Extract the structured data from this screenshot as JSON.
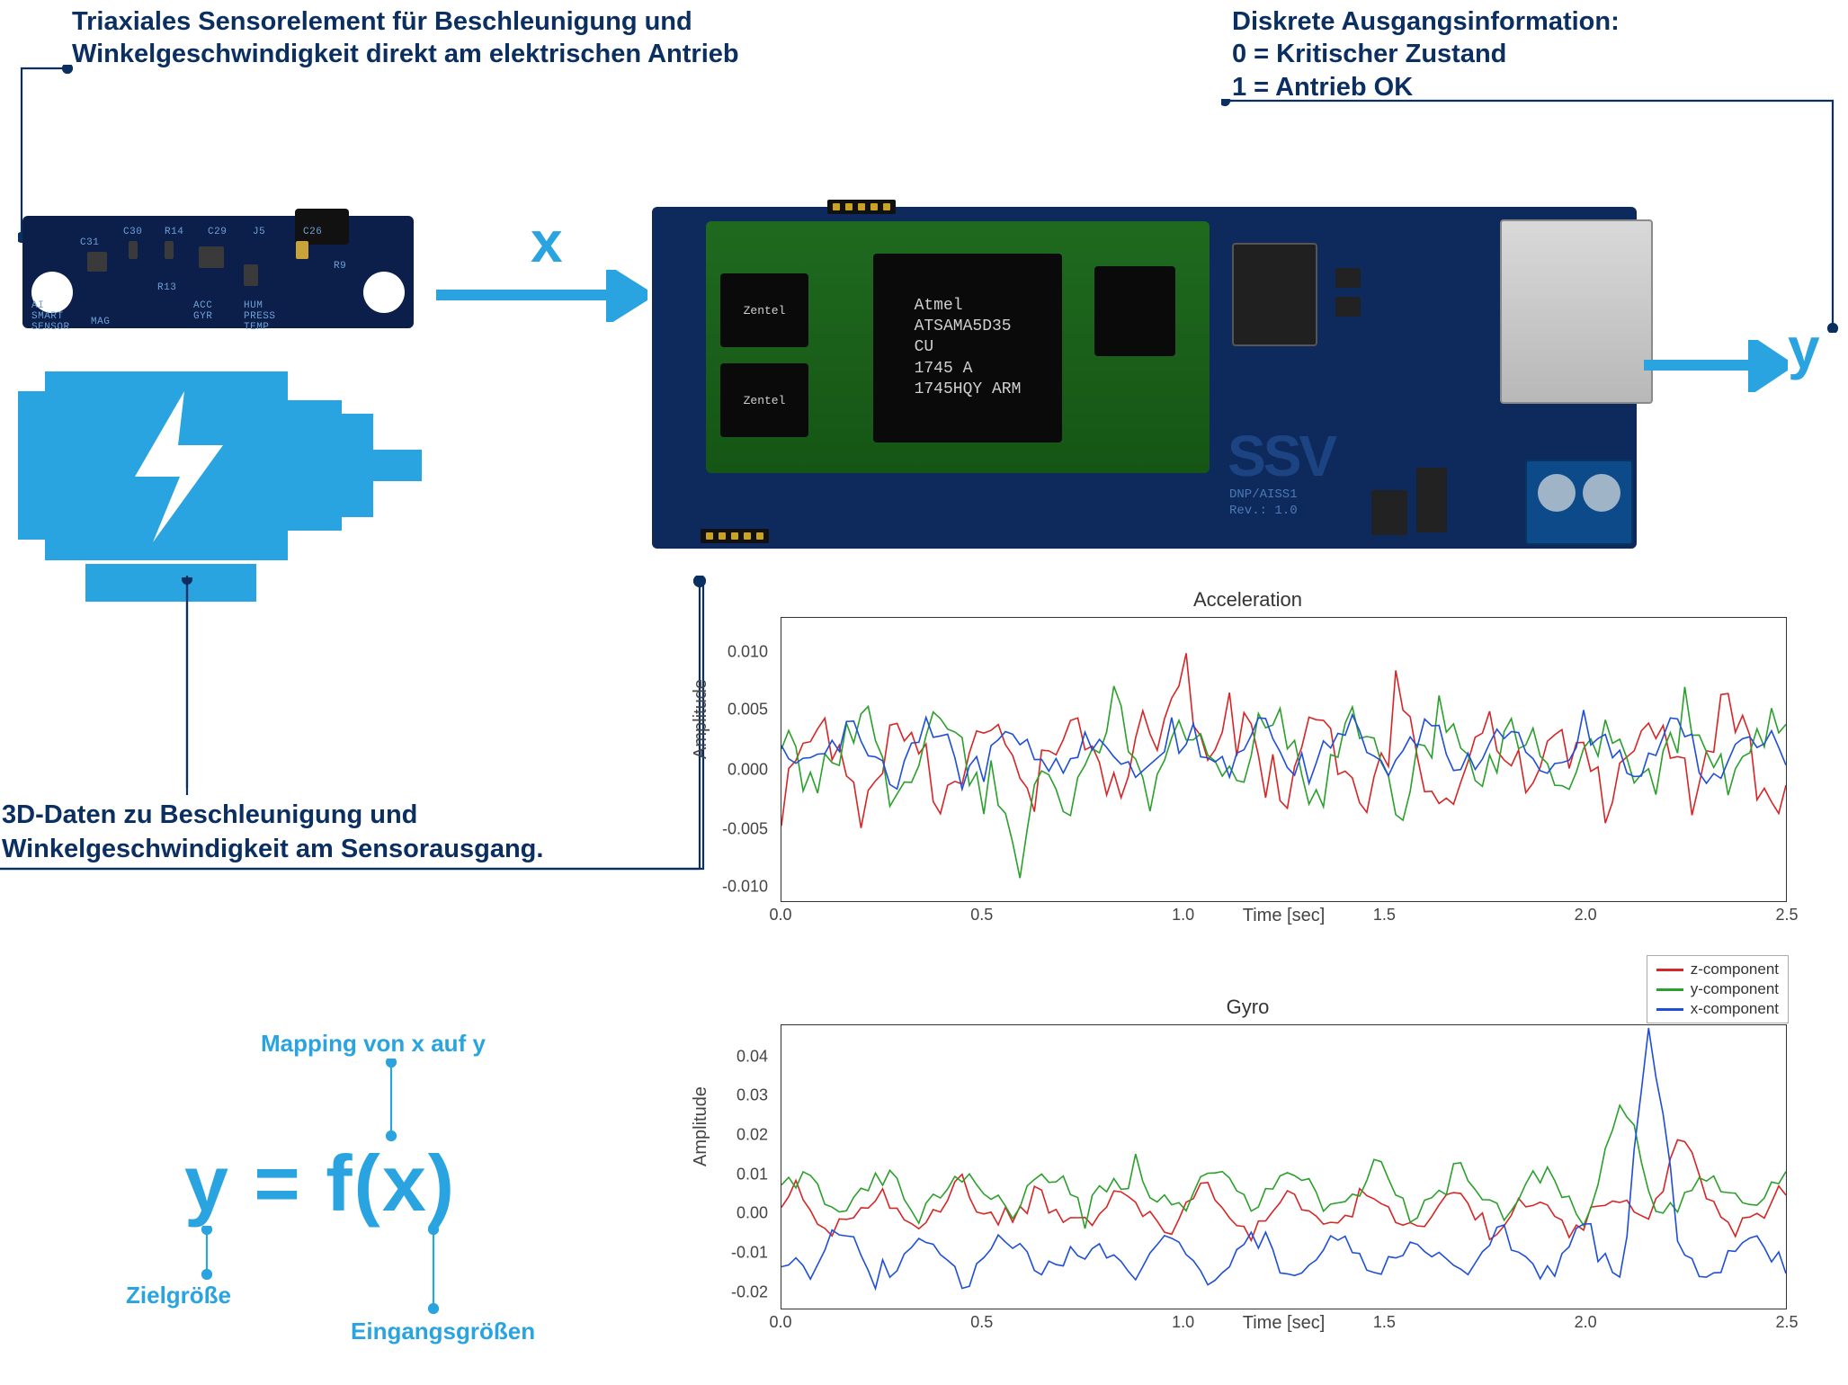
{
  "labels": {
    "sensor": "Triaxiales Sensorelement für Beschleunigung und\nWinkelgeschwindigkeit direkt am elektrischen Antrieb",
    "output": "Diskrete Ausgangsinformation:\n0 = Kritischer Zustand\n1 = Antrieb OK",
    "data3d": "3D-Daten zu Beschleunigung und\nWinkelgeschwindigkeit am Sensorausgang.",
    "x": "x",
    "y": "y"
  },
  "colors": {
    "dark_blue": "#0a2f60",
    "light_blue": "#2aa4e0",
    "pcb_blue": "#0e2a5c",
    "som_green_top": "#1f6a1f",
    "som_green_bot": "#155515",
    "series_z": "#d62728",
    "series_y": "#2ca02c",
    "series_x": "#1f4fd6",
    "axis": "#333333"
  },
  "som": {
    "chip_main": "Atmel\nATSAMA5D35\nCU\n1745  A\n1745HQY   ARM",
    "chip_ram": "Zentel"
  },
  "equation": {
    "formula": "y = f(x)",
    "annot_map": "Mapping von x auf y",
    "annot_y": "Zielgröße",
    "annot_x": "Eingangsgrößen"
  },
  "legend": {
    "z": "z-component",
    "y": "y-component",
    "x": "x-component"
  },
  "charts": {
    "acc": {
      "type": "line",
      "title": "Acceleration",
      "xlabel": "Time [sec]",
      "ylabel": "Amplitude",
      "xlim": [
        0.0,
        2.5
      ],
      "ylim": [
        -0.012,
        0.012
      ],
      "xticks": [
        0.0,
        0.5,
        1.0,
        1.5,
        2.0,
        2.5
      ],
      "yticks": [
        -0.01,
        -0.005,
        0.0,
        0.005,
        0.01
      ],
      "line_width": 1.6,
      "background_color": "#ffffff",
      "border_color": "#333333"
    },
    "gyro": {
      "type": "line",
      "title": "Gyro",
      "xlabel": "Time [sec]",
      "ylabel": "Amplitude",
      "xlim": [
        0.0,
        2.5
      ],
      "ylim": [
        -0.025,
        0.045
      ],
      "xticks": [
        0.0,
        0.5,
        1.0,
        1.5,
        2.0,
        2.5
      ],
      "yticks": [
        -0.02,
        -0.01,
        0.0,
        0.01,
        0.02,
        0.03,
        0.04
      ],
      "line_width": 1.6,
      "background_color": "#ffffff",
      "border_color": "#333333"
    }
  }
}
